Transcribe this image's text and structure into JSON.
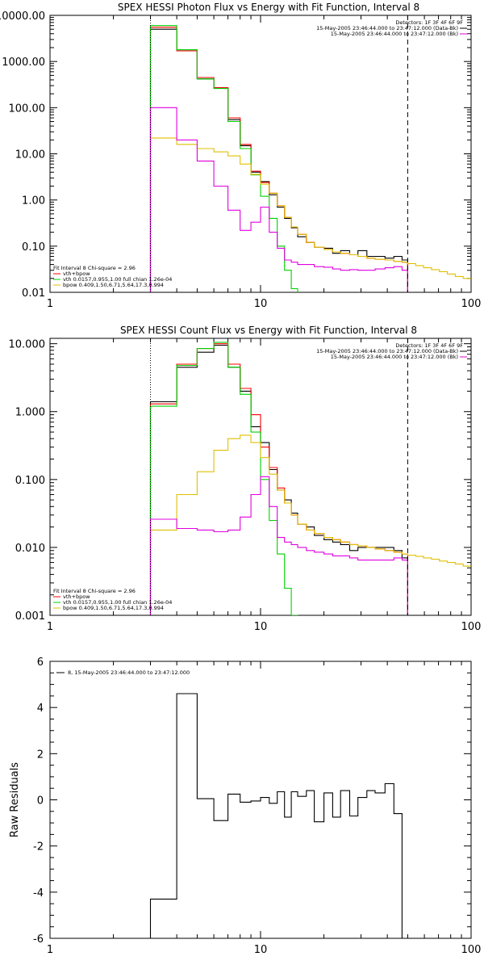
{
  "chart_data": [
    {
      "type": "line",
      "title": "SPEX HESSI Photon Flux vs Energy with Fit Function, Interval 8",
      "xscale": "log",
      "yscale": "log",
      "xlim": [
        1,
        100
      ],
      "ylim": [
        0.01,
        10000
      ],
      "x_ticks": [
        "1",
        "10",
        "100"
      ],
      "y_ticks": [
        "10000.00",
        "1000.00",
        "100.00",
        "10.00",
        "1.00",
        "0.10",
        "0.01"
      ],
      "legend_top_right": [
        "Detectors: 1F 3F 4F 6F 9F",
        "15-May-2005 23:46:44.000 to 23:47:12.000 (Data-Bk)",
        "15-May-2005 23:46:44.000 to 23:47:12.000 (Bk)"
      ],
      "legend_bottom_left": [
        "Fit Interval 8   Chi-square = 2.96",
        "vth+bpow",
        "vth 0.0157,0.955,1.00  full chian 1.26e-04",
        "bpow 0.409,1.50,6.71,5.64,17.3,0.994"
      ],
      "vlines": [
        {
          "x": 3,
          "style": "dotted"
        },
        {
          "x": 50,
          "style": "dashed"
        }
      ],
      "edges": [
        3,
        4,
        5,
        6,
        7,
        8,
        9,
        10,
        11,
        12,
        13,
        14,
        15,
        16.5,
        18,
        20,
        22,
        24,
        26.5,
        29,
        32,
        35,
        39,
        43,
        47,
        50
      ],
      "series": [
        {
          "name": "Data-Bk",
          "color": "#000000",
          "values": [
            5000,
            1800,
            420,
            270,
            55,
            15,
            4,
            2.5,
            1.3,
            0.7,
            0.4,
            0.25,
            0.16,
            0.12,
            0.095,
            0.09,
            0.07,
            0.08,
            0.065,
            0.08,
            0.06,
            0.06,
            0.055,
            0.06,
            0.05
          ]
        },
        {
          "name": "vth+bpow",
          "color": "#ff0000",
          "values": [
            5500,
            1700,
            450,
            270,
            60,
            16,
            4.2,
            2.4,
            1.4,
            0.75,
            0.42,
            0.26,
            0.18,
            0.12,
            0.095,
            0.085,
            0.075,
            0.07,
            0.065,
            0.06,
            0.055,
            0.052,
            0.05,
            0.047,
            0.045
          ]
        },
        {
          "name": "vth",
          "color": "#00d000",
          "values": [
            6000,
            1800,
            420,
            260,
            50,
            13,
            3.5,
            1.2,
            0.4,
            0.1,
            0.03,
            0.012
          ]
        },
        {
          "name": "bpow",
          "color": "#e0c000",
          "x_end": 100,
          "values": [
            22,
            16,
            13,
            11,
            9,
            6,
            3.6,
            2.2,
            1.4,
            0.75,
            0.42,
            0.26,
            0.18,
            0.12,
            0.095,
            0.085,
            0.075,
            0.07,
            0.065,
            0.06,
            0.055,
            0.052,
            0.05,
            0.047,
            0.045,
            0.042,
            0.038,
            0.034,
            0.031,
            0.028,
            0.025,
            0.022,
            0.02
          ]
        },
        {
          "name": "Bk",
          "color": "#e000e0",
          "values": [
            100,
            20,
            7,
            2,
            0.6,
            0.22,
            0.33,
            0.7,
            0.2,
            0.09,
            0.05,
            0.045,
            0.04,
            0.04,
            0.036,
            0.035,
            0.032,
            0.03,
            0.031,
            0.03,
            0.03,
            0.032,
            0.034,
            0.036,
            0.03
          ]
        }
      ]
    },
    {
      "type": "line",
      "title": "SPEX HESSI Count Flux vs Energy with Fit Function, Interval 8",
      "xscale": "log",
      "yscale": "log",
      "xlim": [
        1,
        100
      ],
      "ylim": [
        0.001,
        12
      ],
      "x_ticks": [
        "1",
        "10",
        "100"
      ],
      "y_ticks": [
        "10.000",
        "1.000",
        "0.100",
        "0.010",
        "0.001"
      ],
      "legend_top_right": [
        "Detectors: 1F 3F 4F 6F 9F",
        "15-May-2005 23:46:44.000 to 23:47:12.000 (Data-Bk)",
        "15-May-2005 23:46:44.000 to 23:47:12.000 (Bk)"
      ],
      "legend_bottom_left": [
        "Fit Interval 8   Chi-square = 2.96",
        "vth+bpow",
        "vth 0.0157,0.955,1.00  full chian 1.26e-04",
        "bpow 0.409,1.50,6.71,5.64,17.3,0.994"
      ],
      "vlines": [
        {
          "x": 3,
          "style": "dotted"
        },
        {
          "x": 50,
          "style": "dashed"
        }
      ],
      "edges": [
        3,
        4,
        5,
        6,
        7,
        8,
        9,
        10,
        11,
        12,
        13,
        14,
        15,
        16.5,
        18,
        20,
        22,
        24,
        26.5,
        29,
        32,
        35,
        39,
        43,
        47,
        50
      ],
      "series": [
        {
          "name": "Data-Bk",
          "color": "#000000",
          "values": [
            1.4,
            4.5,
            7.5,
            9.5,
            4.5,
            2,
            0.6,
            0.35,
            0.14,
            0.07,
            0.05,
            0.032,
            0.022,
            0.02,
            0.015,
            0.013,
            0.012,
            0.011,
            0.009,
            0.01,
            0.01,
            0.01,
            0.01,
            0.009,
            0.007
          ]
        },
        {
          "name": "vth+bpow",
          "color": "#ff0000",
          "values": [
            1.3,
            5,
            8.5,
            10,
            5,
            2.2,
            0.9,
            0.3,
            0.15,
            0.075,
            0.045,
            0.03,
            0.022,
            0.018,
            0.016,
            0.014,
            0.013,
            0.012,
            0.011,
            0.0105,
            0.01,
            0.0095,
            0.009,
            0.0085,
            0.008
          ]
        },
        {
          "name": "vth",
          "color": "#00d000",
          "values": [
            1.2,
            4.8,
            8.5,
            10.5,
            4.5,
            1.8,
            0.5,
            0.1,
            0.025,
            0.008,
            0.0025,
            0.001
          ]
        },
        {
          "name": "bpow",
          "color": "#e0c000",
          "x_end": 100,
          "values": [
            0.018,
            0.06,
            0.13,
            0.27,
            0.4,
            0.45,
            0.35,
            0.21,
            0.12,
            0.07,
            0.045,
            0.03,
            0.022,
            0.018,
            0.016,
            0.014,
            0.013,
            0.012,
            0.011,
            0.0105,
            0.01,
            0.0095,
            0.009,
            0.0085,
            0.008,
            0.0077,
            0.0074,
            0.007,
            0.0067,
            0.0063,
            0.006,
            0.0057,
            0.0053
          ]
        },
        {
          "name": "Bk",
          "color": "#e000e0",
          "values": [
            0.026,
            0.019,
            0.018,
            0.017,
            0.018,
            0.028,
            0.06,
            0.11,
            0.04,
            0.014,
            0.012,
            0.011,
            0.01,
            0.009,
            0.0085,
            0.008,
            0.0075,
            0.0075,
            0.007,
            0.0065,
            0.0065,
            0.0065,
            0.0065,
            0.007,
            0.0065
          ]
        }
      ]
    },
    {
      "type": "line",
      "title": "",
      "xscale": "log",
      "yscale": "linear",
      "xlim": [
        1,
        100
      ],
      "ylim": [
        -6,
        6
      ],
      "x_ticks": [
        "1",
        "10",
        "100"
      ],
      "y_ticks": [
        "6",
        "4",
        "2",
        "0",
        "-2",
        "-4",
        "-6"
      ],
      "ylabel": "Raw Residuals",
      "legend_top_left": [
        "8, 15-May-2005 23:46:44.000 to 23:47:12.000"
      ],
      "edges": [
        3,
        4,
        5,
        6,
        7,
        8,
        9,
        10,
        11,
        12,
        13,
        14,
        15,
        16.5,
        18,
        20,
        22,
        24,
        26.5,
        29,
        32,
        35,
        39,
        43,
        47,
        50
      ],
      "series": [
        {
          "name": "",
          "color": "#000000",
          "values": [
            -4.3,
            4.6,
            0.05,
            -0.9,
            0.25,
            -0.1,
            -0.05,
            0.1,
            -0.15,
            0.35,
            -0.75,
            0.35,
            0.15,
            0.4,
            -0.95,
            0.3,
            -0.75,
            0.4,
            -0.7,
            0.1,
            0.4,
            0.3,
            0.7,
            -0.6,
            -6
          ]
        }
      ]
    }
  ]
}
